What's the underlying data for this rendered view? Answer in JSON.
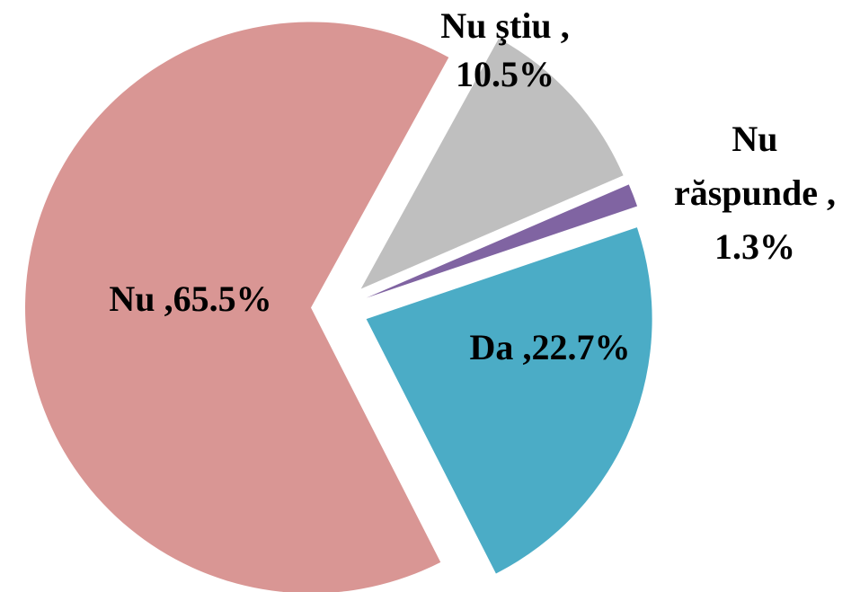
{
  "chart_data": {
    "type": "pie",
    "categories": [
      "Da",
      "Nu",
      "Nu ştiu",
      "Nu răspunde"
    ],
    "values": [
      22.7,
      65.5,
      10.5,
      1.3
    ],
    "value_labels": [
      "22.7%",
      "65.5%",
      "10.5%",
      "1.3%"
    ],
    "label_separator": " ,",
    "colors": [
      "#4bacc6",
      "#d99694",
      "#bfbfbf",
      "#8064a2"
    ]
  }
}
